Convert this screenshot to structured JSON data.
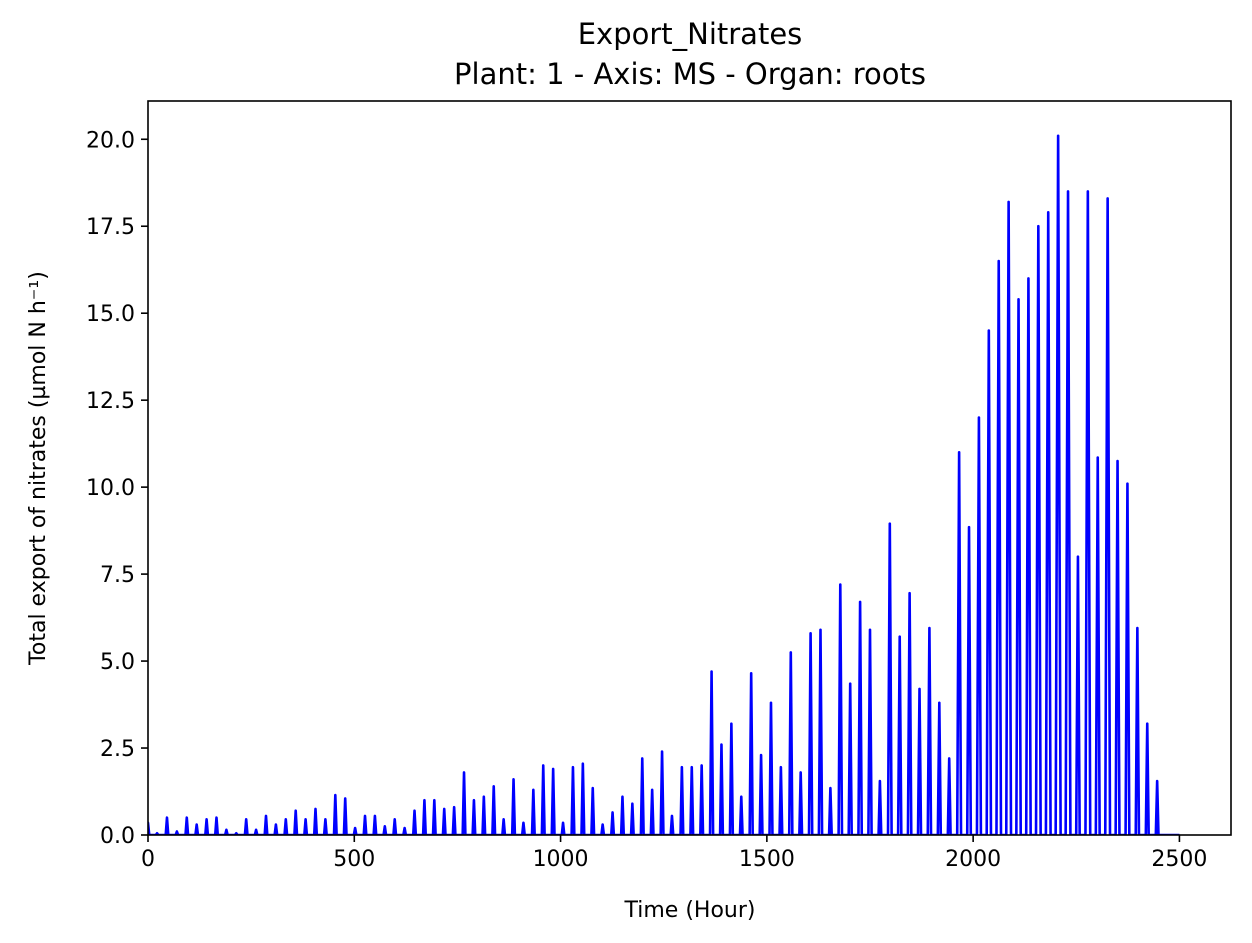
{
  "chart_data": {
    "type": "line",
    "title": "Export_Nitrates",
    "subtitle": "Plant: 1 - Axis: MS - Organ: roots",
    "xlabel": "Time (Hour)",
    "ylabel": "Total export of nitrates (µmol N h⁻¹)",
    "xlim": [
      0,
      2625
    ],
    "ylim": [
      0,
      21.1
    ],
    "grid": false,
    "color": "#0000ff",
    "x_ticks": [
      {
        "value": 0,
        "label": "0"
      },
      {
        "value": 500,
        "label": "500"
      },
      {
        "value": 1000,
        "label": "1000"
      },
      {
        "value": 1500,
        "label": "1500"
      },
      {
        "value": 2000,
        "label": "2000"
      },
      {
        "value": 2500,
        "label": "2500"
      }
    ],
    "y_ticks": [
      {
        "value": 0,
        "label": "0.0"
      },
      {
        "value": 2.5,
        "label": "2.5"
      },
      {
        "value": 5,
        "label": "5.0"
      },
      {
        "value": 7.5,
        "label": "7.5"
      },
      {
        "value": 10,
        "label": "10.0"
      },
      {
        "value": 12.5,
        "label": "12.5"
      },
      {
        "value": 15,
        "label": "15.0"
      },
      {
        "value": 17.5,
        "label": "17.5"
      },
      {
        "value": 20,
        "label": "20.0"
      }
    ],
    "series": [
      {
        "peaks": [
          [
            0,
            0.35
          ],
          [
            22,
            0.05
          ],
          [
            46,
            0.5
          ],
          [
            70,
            0.1
          ],
          [
            94,
            0.5
          ],
          [
            118,
            0.3
          ],
          [
            142,
            0.45
          ],
          [
            166,
            0.5
          ],
          [
            190,
            0.15
          ],
          [
            214,
            0.05
          ],
          [
            238,
            0.45
          ],
          [
            262,
            0.15
          ],
          [
            286,
            0.55
          ],
          [
            310,
            0.3
          ],
          [
            334,
            0.45
          ],
          [
            358,
            0.7
          ],
          [
            382,
            0.45
          ],
          [
            406,
            0.75
          ],
          [
            430,
            0.45
          ],
          [
            454,
            1.15
          ],
          [
            478,
            1.05
          ],
          [
            502,
            0.2
          ],
          [
            526,
            0.55
          ],
          [
            550,
            0.55
          ],
          [
            574,
            0.25
          ],
          [
            598,
            0.45
          ],
          [
            622,
            0.2
          ],
          [
            646,
            0.7
          ],
          [
            670,
            1.0
          ],
          [
            694,
            1.0
          ],
          [
            718,
            0.75
          ],
          [
            742,
            0.8
          ],
          [
            766,
            1.8
          ],
          [
            790,
            1.0
          ],
          [
            814,
            1.1
          ],
          [
            838,
            1.4
          ],
          [
            862,
            0.45
          ],
          [
            886,
            1.6
          ],
          [
            910,
            0.35
          ],
          [
            934,
            1.3
          ],
          [
            958,
            2.0
          ],
          [
            982,
            1.9
          ],
          [
            1006,
            0.35
          ],
          [
            1030,
            1.95
          ],
          [
            1054,
            2.05
          ],
          [
            1078,
            1.35
          ],
          [
            1102,
            0.3
          ],
          [
            1126,
            0.65
          ],
          [
            1150,
            1.1
          ],
          [
            1174,
            0.9
          ],
          [
            1198,
            2.2
          ],
          [
            1222,
            1.3
          ],
          [
            1246,
            2.4
          ],
          [
            1270,
            0.55
          ],
          [
            1294,
            1.95
          ],
          [
            1318,
            1.95
          ],
          [
            1342,
            2.0
          ],
          [
            1366,
            4.7
          ],
          [
            1390,
            2.6
          ],
          [
            1414,
            3.2
          ],
          [
            1438,
            1.1
          ],
          [
            1462,
            4.65
          ],
          [
            1486,
            2.3
          ],
          [
            1510,
            3.8
          ],
          [
            1534,
            1.95
          ],
          [
            1558,
            5.25
          ],
          [
            1582,
            1.8
          ],
          [
            1606,
            5.8
          ],
          [
            1630,
            5.9
          ],
          [
            1654,
            1.35
          ],
          [
            1678,
            7.2
          ],
          [
            1702,
            4.35
          ],
          [
            1726,
            6.7
          ],
          [
            1750,
            5.9
          ],
          [
            1774,
            1.55
          ],
          [
            1798,
            8.95
          ],
          [
            1822,
            5.7
          ],
          [
            1846,
            6.95
          ],
          [
            1870,
            4.2
          ],
          [
            1894,
            5.95
          ],
          [
            1918,
            3.8
          ],
          [
            1942,
            2.2
          ],
          [
            1966,
            11.0
          ],
          [
            1990,
            8.85
          ],
          [
            2014,
            12.0
          ],
          [
            2038,
            14.5
          ],
          [
            2062,
            16.5
          ],
          [
            2086,
            18.2
          ],
          [
            2110,
            15.4
          ],
          [
            2134,
            16.0
          ],
          [
            2158,
            17.5
          ],
          [
            2182,
            17.9
          ],
          [
            2206,
            20.1
          ],
          [
            2230,
            18.5
          ],
          [
            2254,
            8.0
          ],
          [
            2278,
            18.5
          ],
          [
            2302,
            10.85
          ],
          [
            2326,
            18.3
          ],
          [
            2350,
            10.75
          ],
          [
            2374,
            10.1
          ],
          [
            2398,
            5.95
          ],
          [
            2422,
            3.2
          ],
          [
            2446,
            1.55
          ]
        ],
        "end_x": 2500
      }
    ]
  }
}
